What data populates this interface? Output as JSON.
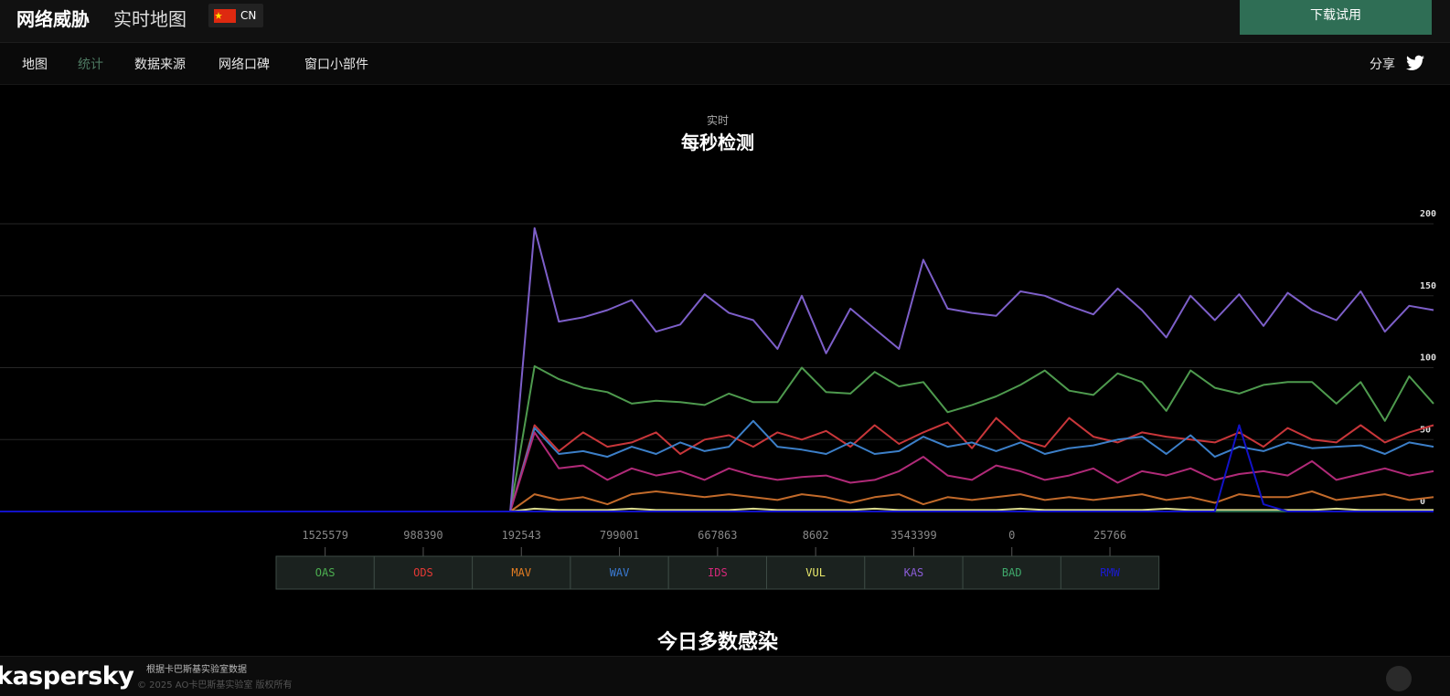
{
  "header": {
    "brand": "网络威胁",
    "subtitle": "实时地图",
    "locale": "CN",
    "button": "下载试用"
  },
  "nav": {
    "items": [
      "地图",
      "统计",
      "数据来源",
      "网络口碑",
      "窗口小部件"
    ],
    "share": "分享"
  },
  "section": {
    "kicker": "实时",
    "title": "每秒检测"
  },
  "chart_data": {
    "type": "line",
    "ylim": [
      0,
      200
    ],
    "yticks": [
      0,
      50,
      100,
      150,
      200
    ],
    "grid": true,
    "series": [
      {
        "name": "OAS",
        "color": "#4e9a4e",
        "label_color": "#4caf50",
        "total": "1525579",
        "values": [
          0,
          0,
          0,
          0,
          0,
          0,
          0,
          0,
          0,
          0,
          0,
          0,
          0,
          0,
          0,
          0,
          0,
          0,
          0,
          0,
          0,
          0,
          101,
          92,
          86,
          83,
          75,
          77,
          76,
          74,
          82,
          76,
          76,
          100,
          83,
          82,
          97,
          87,
          90,
          69,
          74,
          80,
          88,
          98,
          84,
          81,
          96,
          90,
          70,
          98,
          86,
          82,
          88,
          90,
          90,
          75,
          90,
          63,
          94,
          75
        ]
      },
      {
        "name": "ODS",
        "color": "#c8363a",
        "label_color": "#e53935",
        "total": "988390",
        "values": [
          0,
          0,
          0,
          0,
          0,
          0,
          0,
          0,
          0,
          0,
          0,
          0,
          0,
          0,
          0,
          0,
          0,
          0,
          0,
          0,
          0,
          0,
          60,
          42,
          55,
          45,
          48,
          55,
          40,
          50,
          53,
          45,
          55,
          50,
          56,
          45,
          60,
          47,
          55,
          62,
          44,
          65,
          50,
          45,
          65,
          52,
          48,
          55,
          52,
          50,
          48,
          55,
          45,
          58,
          50,
          48,
          60,
          48,
          55,
          60
        ]
      },
      {
        "name": "MAV",
        "color": "#c26a2a",
        "label_color": "#e67e22",
        "total": "192543",
        "values": [
          0,
          0,
          0,
          0,
          0,
          0,
          0,
          0,
          0,
          0,
          0,
          0,
          0,
          0,
          0,
          0,
          0,
          0,
          0,
          0,
          0,
          0,
          12,
          8,
          10,
          5,
          12,
          14,
          12,
          10,
          12,
          10,
          8,
          12,
          10,
          6,
          10,
          12,
          5,
          10,
          8,
          10,
          12,
          8,
          10,
          8,
          10,
          12,
          8,
          10,
          6,
          12,
          10,
          10,
          14,
          8,
          10,
          12,
          8,
          10
        ]
      },
      {
        "name": "WAV",
        "color": "#3c7fc8",
        "label_color": "#3a7bd5",
        "total": "799001",
        "values": [
          0,
          0,
          0,
          0,
          0,
          0,
          0,
          0,
          0,
          0,
          0,
          0,
          0,
          0,
          0,
          0,
          0,
          0,
          0,
          0,
          0,
          0,
          58,
          40,
          42,
          38,
          45,
          40,
          48,
          42,
          45,
          63,
          45,
          43,
          40,
          48,
          40,
          42,
          52,
          45,
          48,
          42,
          48,
          40,
          44,
          46,
          50,
          52,
          40,
          53,
          38,
          45,
          42,
          48,
          44,
          45,
          46,
          40,
          48,
          45
        ]
      },
      {
        "name": "IDS",
        "color": "#b02a78",
        "label_color": "#d6287a",
        "total": "667863",
        "values": [
          0,
          0,
          0,
          0,
          0,
          0,
          0,
          0,
          0,
          0,
          0,
          0,
          0,
          0,
          0,
          0,
          0,
          0,
          0,
          0,
          0,
          0,
          55,
          30,
          32,
          22,
          30,
          25,
          28,
          22,
          30,
          25,
          22,
          24,
          25,
          20,
          22,
          28,
          38,
          25,
          22,
          32,
          28,
          22,
          25,
          30,
          20,
          28,
          25,
          30,
          22,
          26,
          28,
          25,
          35,
          22,
          26,
          30,
          25,
          28
        ]
      },
      {
        "name": "VUL",
        "color": "#d8d890",
        "label_color": "#e8e86b",
        "total": "8602",
        "values": [
          0,
          0,
          0,
          0,
          0,
          0,
          0,
          0,
          0,
          0,
          0,
          0,
          0,
          0,
          0,
          0,
          0,
          0,
          0,
          0,
          0,
          0,
          2,
          1,
          1,
          1,
          2,
          1,
          1,
          1,
          1,
          2,
          1,
          1,
          1,
          1,
          2,
          1,
          1,
          1,
          1,
          1,
          2,
          1,
          1,
          1,
          1,
          1,
          2,
          1,
          1,
          1,
          1,
          1,
          1,
          2,
          1,
          1,
          1,
          1
        ]
      },
      {
        "name": "KAS",
        "color": "#7d5fc9",
        "label_color": "#8a5cd6",
        "total": "3543399",
        "values": [
          0,
          0,
          0,
          0,
          0,
          0,
          0,
          0,
          0,
          0,
          0,
          0,
          0,
          0,
          0,
          0,
          0,
          0,
          0,
          0,
          0,
          0,
          197,
          132,
          135,
          140,
          147,
          125,
          130,
          151,
          138,
          133,
          113,
          150,
          110,
          141,
          127,
          113,
          175,
          141,
          138,
          136,
          153,
          150,
          143,
          137,
          155,
          140,
          121,
          150,
          133,
          151,
          129,
          152,
          140,
          133,
          153,
          125,
          143,
          140
        ]
      },
      {
        "name": "BAD",
        "color": "#2a6a4a",
        "label_color": "#3fa86b",
        "total": "0",
        "values": [
          0,
          0,
          0,
          0,
          0,
          0,
          0,
          0,
          0,
          0,
          0,
          0,
          0,
          0,
          0,
          0,
          0,
          0,
          0,
          0,
          0,
          0,
          0,
          0,
          0,
          0,
          0,
          0,
          0,
          0,
          0,
          0,
          0,
          0,
          0,
          0,
          0,
          0,
          0,
          0,
          0,
          0,
          0,
          0,
          0,
          0,
          0,
          0,
          0,
          0,
          0,
          0,
          0,
          0,
          0,
          0,
          0,
          0,
          0,
          0
        ]
      },
      {
        "name": "RMW",
        "color": "#1212c8",
        "label_color": "#1a1ad0",
        "total": "25766",
        "values": [
          0,
          0,
          0,
          0,
          0,
          0,
          0,
          0,
          0,
          0,
          0,
          0,
          0,
          0,
          0,
          0,
          0,
          0,
          0,
          0,
          0,
          0,
          0,
          0,
          0,
          0,
          0,
          0,
          0,
          0,
          0,
          0,
          0,
          0,
          0,
          0,
          0,
          0,
          0,
          0,
          0,
          0,
          0,
          0,
          0,
          0,
          0,
          0,
          0,
          0,
          0,
          60,
          5,
          0,
          0,
          0,
          0,
          0,
          0,
          0
        ]
      }
    ]
  },
  "section2": {
    "title": "今日多数感染"
  },
  "footer": {
    "logo": "kaspersky",
    "source": "根据卡巴斯基实验室数据",
    "copyright": "© 2025 AO卡巴斯基实验室 版权所有"
  }
}
